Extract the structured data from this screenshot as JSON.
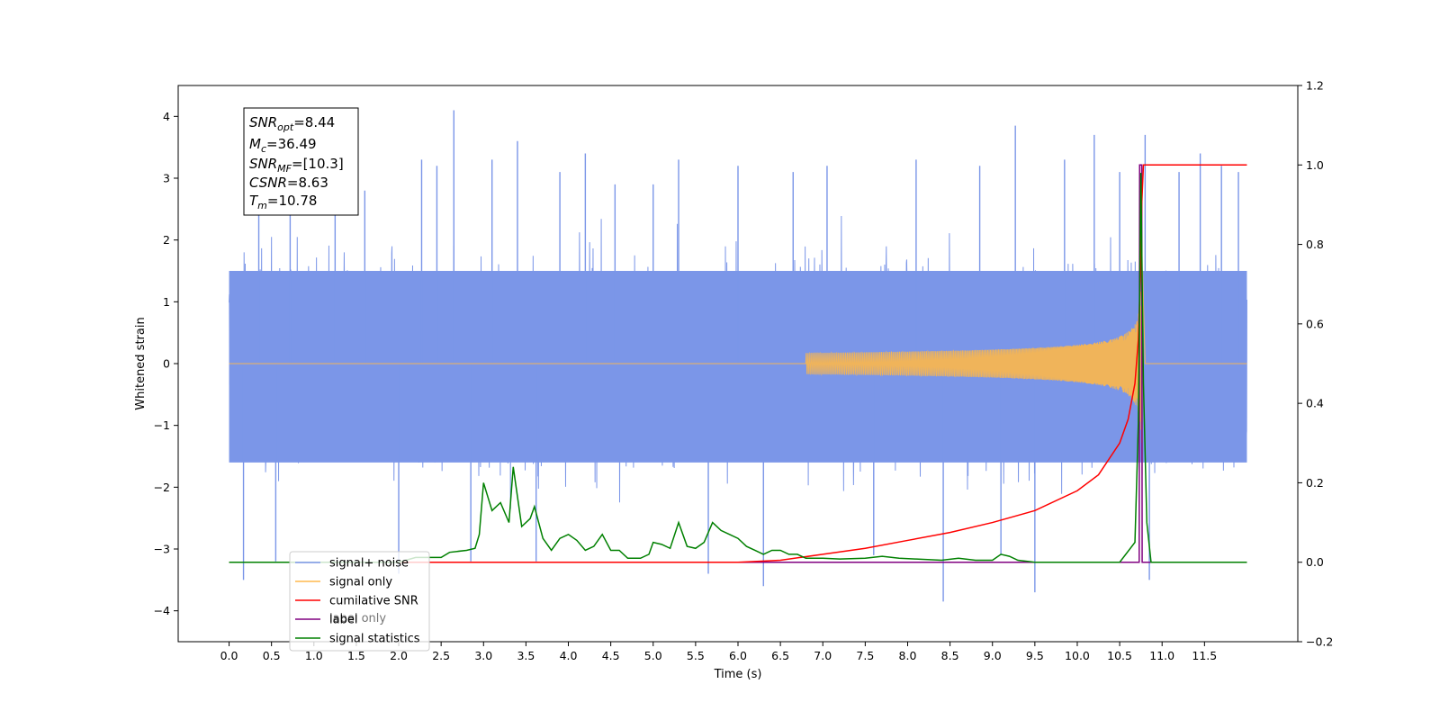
{
  "chart_data": {
    "type": "line",
    "xlabel": "Time (s)",
    "ylabel_left": "Whitened strain",
    "ylabel_right": "",
    "xlim": [
      -0.6,
      12.6
    ],
    "ylim_left": [
      -4.5,
      4.5
    ],
    "ylim_right": [
      -0.2,
      1.2
    ],
    "x_ticks": [
      "0.0",
      "0.5",
      "1.0",
      "1.5",
      "2.0",
      "2.5",
      "3.0",
      "3.5",
      "4.0",
      "4.5",
      "5.0",
      "5.5",
      "6.0",
      "6.5",
      "7.0",
      "7.5",
      "8.0",
      "8.5",
      "9.0",
      "9.5",
      "10.0",
      "10.5",
      "11.0",
      "11.5"
    ],
    "y_ticks_left": [
      "−4",
      "−3",
      "−2",
      "−1",
      "0",
      "1",
      "2",
      "3",
      "4"
    ],
    "y_ticks_right": [
      "−0.2",
      "0.0",
      "0.2",
      "0.4",
      "0.6",
      "0.8",
      "1.0",
      "1.2"
    ],
    "noise": {
      "envelope": {
        "x": [
          0,
          12
        ],
        "low": -1.6,
        "high": 1.5
      },
      "spikes": [
        {
          "x": 0.17,
          "y": -3.5
        },
        {
          "x": 0.55,
          "y": -3.2
        },
        {
          "x": 0.35,
          "y": 2.6
        },
        {
          "x": 0.72,
          "y": 3.0
        },
        {
          "x": 1.25,
          "y": 2.9
        },
        {
          "x": 1.6,
          "y": 2.8
        },
        {
          "x": 2.0,
          "y": -3.4
        },
        {
          "x": 2.27,
          "y": 3.3
        },
        {
          "x": 2.45,
          "y": 3.2
        },
        {
          "x": 2.65,
          "y": 4.1
        },
        {
          "x": 2.85,
          "y": -3.2
        },
        {
          "x": 3.1,
          "y": 3.3
        },
        {
          "x": 3.4,
          "y": 3.6
        },
        {
          "x": 3.62,
          "y": -3.2
        },
        {
          "x": 3.9,
          "y": 3.1
        },
        {
          "x": 4.2,
          "y": 3.4
        },
        {
          "x": 4.55,
          "y": 2.9
        },
        {
          "x": 5.0,
          "y": 2.9
        },
        {
          "x": 5.3,
          "y": 3.3
        },
        {
          "x": 5.65,
          "y": -3.4
        },
        {
          "x": 6.0,
          "y": 3.2
        },
        {
          "x": 6.3,
          "y": -3.6
        },
        {
          "x": 6.65,
          "y": 3.1
        },
        {
          "x": 7.05,
          "y": 3.2
        },
        {
          "x": 7.6,
          "y": -3.1
        },
        {
          "x": 8.1,
          "y": 3.3
        },
        {
          "x": 8.42,
          "y": -3.85
        },
        {
          "x": 8.85,
          "y": 3.2
        },
        {
          "x": 9.1,
          "y": -3.1
        },
        {
          "x": 9.27,
          "y": 3.85
        },
        {
          "x": 9.5,
          "y": -3.7
        },
        {
          "x": 9.85,
          "y": 3.3
        },
        {
          "x": 10.2,
          "y": 3.7
        },
        {
          "x": 10.5,
          "y": 3.1
        },
        {
          "x": 10.8,
          "y": 3.7
        },
        {
          "x": 10.85,
          "y": -3.5
        },
        {
          "x": 11.2,
          "y": 3.1
        },
        {
          "x": 11.45,
          "y": 3.4
        },
        {
          "x": 11.7,
          "y": 3.2
        },
        {
          "x": 11.9,
          "y": 3.1
        }
      ]
    },
    "signal_only": {
      "start": 6.8,
      "peak_x": 10.77,
      "peak_amplitude": 1.0
    },
    "cumulative_snr": {
      "x": [
        0,
        6.0,
        6.5,
        7.0,
        7.5,
        8.0,
        8.5,
        9.0,
        9.5,
        10.0,
        10.25,
        10.5,
        10.6,
        10.68,
        10.72,
        10.75,
        10.76,
        10.78,
        12.0
      ],
      "y": [
        0,
        0,
        0.005,
        0.02,
        0.035,
        0.055,
        0.075,
        0.1,
        0.13,
        0.18,
        0.22,
        0.3,
        0.36,
        0.45,
        0.56,
        0.75,
        0.9,
        1.0,
        1.0
      ]
    },
    "label_only": {
      "x": [
        0,
        10.73,
        10.735,
        10.76,
        10.765,
        12.0
      ],
      "y": [
        0,
        0,
        1.0,
        1.0,
        0,
        0
      ]
    },
    "signal_statistics": {
      "x": [
        0,
        2.0,
        2.2,
        2.5,
        2.6,
        2.8,
        2.9,
        2.95,
        3.0,
        3.1,
        3.2,
        3.3,
        3.35,
        3.45,
        3.55,
        3.6,
        3.7,
        3.8,
        3.9,
        4.0,
        4.1,
        4.2,
        4.3,
        4.4,
        4.5,
        4.6,
        4.7,
        4.85,
        4.95,
        5.0,
        5.1,
        5.2,
        5.3,
        5.4,
        5.5,
        5.6,
        5.7,
        5.8,
        5.9,
        6.0,
        6.1,
        6.2,
        6.3,
        6.4,
        6.5,
        6.6,
        6.7,
        6.8,
        7.0,
        7.2,
        7.5,
        7.7,
        7.9,
        8.1,
        8.4,
        8.6,
        8.8,
        9.0,
        9.1,
        9.2,
        9.3,
        9.5,
        10.0,
        10.5,
        10.68,
        10.72,
        10.75,
        10.78,
        10.82,
        10.87,
        12.0
      ],
      "y": [
        0,
        0,
        0.012,
        0.012,
        0.025,
        0.03,
        0.035,
        0.07,
        0.2,
        0.13,
        0.15,
        0.1,
        0.24,
        0.09,
        0.11,
        0.14,
        0.06,
        0.03,
        0.06,
        0.07,
        0.055,
        0.03,
        0.04,
        0.07,
        0.03,
        0.03,
        0.01,
        0.01,
        0.02,
        0.05,
        0.045,
        0.035,
        0.1,
        0.04,
        0.035,
        0.05,
        0.1,
        0.08,
        0.07,
        0.06,
        0.04,
        0.03,
        0.02,
        0.03,
        0.03,
        0.02,
        0.02,
        0.01,
        0.01,
        0.008,
        0.01,
        0.015,
        0.01,
        0.008,
        0.005,
        0.01,
        0.005,
        0.005,
        0.02,
        0.015,
        0.005,
        0,
        0,
        0,
        0.05,
        0.35,
        0.98,
        0.45,
        0.1,
        0,
        0
      ]
    },
    "info_box": [
      {
        "base": "SNR",
        "sub": "opt",
        "rest": "=8.44"
      },
      {
        "base": "M",
        "sub": "c",
        "rest": "=36.49"
      },
      {
        "base": "SNR",
        "sub": "MF",
        "rest": "=[10.3]"
      },
      {
        "base": "CSNR",
        "sub": "",
        "rest": "=8.63"
      },
      {
        "base": "T",
        "sub": "m",
        "rest": "=10.78"
      }
    ],
    "legend": {
      "location": "lower-left",
      "entries": [
        {
          "label": "signal+ noise",
          "color": "#7b96e8"
        },
        {
          "label": "signal only",
          "color": "#ffb84d"
        },
        {
          "label": "cumilative SNR",
          "color": "#ff0000"
        },
        {
          "label": "label",
          "color": "#800080"
        },
        {
          "label": "signal statistics",
          "color": "#008000"
        }
      ],
      "ghost_label": "label only"
    },
    "colors": {
      "noise": "#7b96e8",
      "signal": "#f0b45a",
      "csnr": "#ff0000",
      "label": "#800080",
      "stats": "#008000"
    }
  }
}
